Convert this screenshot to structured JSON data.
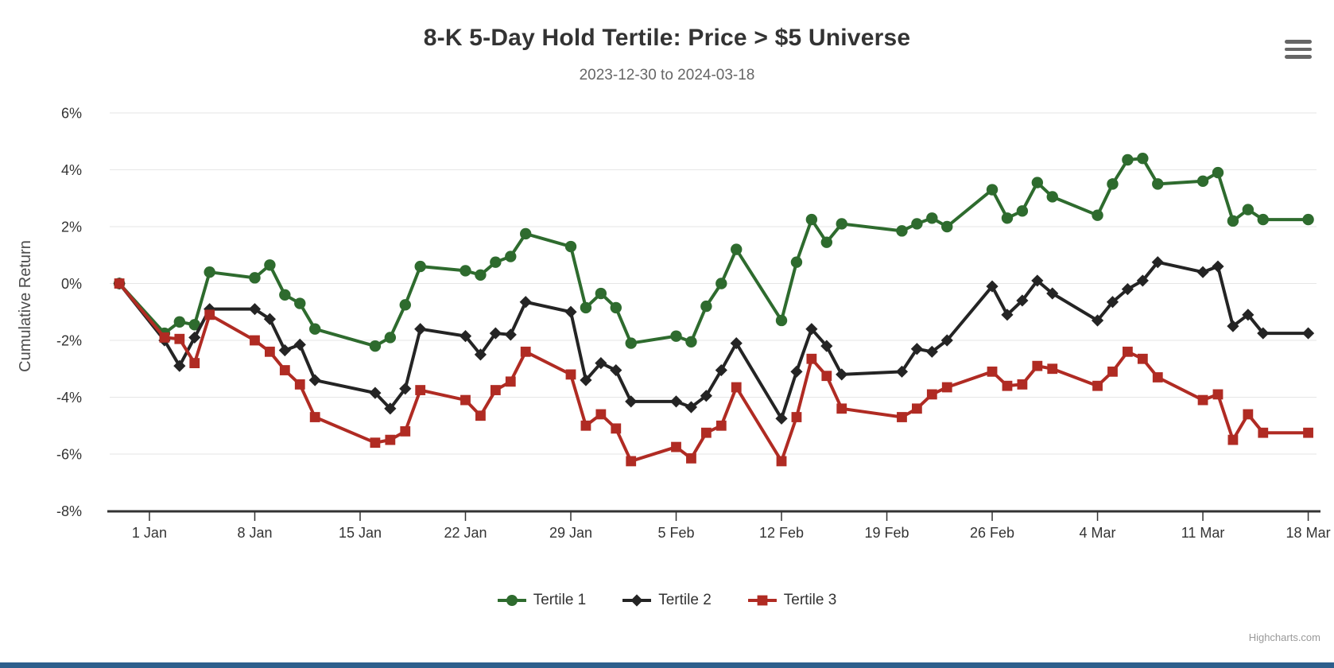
{
  "header": {
    "title": "8-K 5-Day Hold Tertile: Price > $5 Universe",
    "subtitle": "2023-12-30 to 2024-03-18"
  },
  "menu_button": {
    "icon": "hamburger-icon"
  },
  "credit": {
    "text": "Highcharts.com"
  },
  "colors": {
    "title_text": "#333333",
    "subtitle_text": "#666666",
    "axis_text": "#333333",
    "axis_line": "#333333",
    "axis_title_text": "#4D4D4D",
    "grid": "#E6E6E6",
    "menu_icon": "#666666",
    "credit_text": "#999999",
    "bottom_bar": "#2D5F8C",
    "tertile1": "#2E6B2E",
    "tertile2": "#242424",
    "tertile3": "#B02B23"
  },
  "chart_data": {
    "type": "line",
    "title": "8-K 5-Day Hold Tertile: Price > $5 Universe",
    "subtitle": "2023-12-30 to 2024-03-18",
    "xlabel": "",
    "ylabel": "Cumulative Return",
    "ylim": [
      -8,
      6
    ],
    "grid": true,
    "legend_position": "bottom",
    "x": [
      "2023-12-30",
      "2024-01-02",
      "2024-01-03",
      "2024-01-04",
      "2024-01-05",
      "2024-01-08",
      "2024-01-09",
      "2024-01-10",
      "2024-01-11",
      "2024-01-12",
      "2024-01-16",
      "2024-01-17",
      "2024-01-18",
      "2024-01-19",
      "2024-01-22",
      "2024-01-23",
      "2024-01-24",
      "2024-01-25",
      "2024-01-26",
      "2024-01-29",
      "2024-01-30",
      "2024-01-31",
      "2024-02-01",
      "2024-02-02",
      "2024-02-05",
      "2024-02-06",
      "2024-02-07",
      "2024-02-08",
      "2024-02-09",
      "2024-02-12",
      "2024-02-13",
      "2024-02-14",
      "2024-02-15",
      "2024-02-16",
      "2024-02-20",
      "2024-02-21",
      "2024-02-22",
      "2024-02-23",
      "2024-02-26",
      "2024-02-27",
      "2024-02-28",
      "2024-02-29",
      "2024-03-01",
      "2024-03-04",
      "2024-03-05",
      "2024-03-06",
      "2024-03-07",
      "2024-03-08",
      "2024-03-11",
      "2024-03-12",
      "2024-03-13",
      "2024-03-14",
      "2024-03-15",
      "2024-03-18"
    ],
    "series": [
      {
        "name": "Tertile 1",
        "marker": "circle",
        "color": "#2E6B2E",
        "values": [
          0.0,
          -1.75,
          -1.35,
          -1.45,
          0.4,
          0.2,
          0.65,
          -0.4,
          -0.7,
          -1.6,
          -2.2,
          -1.9,
          -0.75,
          0.6,
          0.45,
          0.3,
          0.75,
          0.95,
          1.75,
          1.3,
          -0.85,
          -0.35,
          -0.85,
          -2.1,
          -1.85,
          -2.05,
          -0.8,
          0.0,
          1.2,
          -1.3,
          0.75,
          2.25,
          1.45,
          2.1,
          1.85,
          2.1,
          2.3,
          2.0,
          3.3,
          2.3,
          2.55,
          3.55,
          3.05,
          2.4,
          3.5,
          4.35,
          4.4,
          3.5,
          3.6,
          3.9,
          2.2,
          2.6,
          2.25,
          2.25
        ]
      },
      {
        "name": "Tertile 2",
        "marker": "diamond",
        "color": "#242424",
        "values": [
          0.0,
          -2.0,
          -2.9,
          -1.9,
          -0.9,
          -0.9,
          -1.25,
          -2.35,
          -2.15,
          -3.4,
          -3.85,
          -4.4,
          -3.7,
          -1.6,
          -1.85,
          -2.5,
          -1.75,
          -1.8,
          -0.65,
          -1.0,
          -3.4,
          -2.8,
          -3.05,
          -4.15,
          -4.15,
          -4.35,
          -3.95,
          -3.05,
          -2.1,
          -4.75,
          -3.1,
          -1.6,
          -2.2,
          -3.2,
          -3.1,
          -2.3,
          -2.4,
          -2.0,
          -0.1,
          -1.1,
          -0.6,
          0.1,
          -0.35,
          -1.3,
          -0.65,
          -0.2,
          0.1,
          0.75,
          0.4,
          0.6,
          -1.5,
          -1.1,
          -1.75,
          -1.75
        ]
      },
      {
        "name": "Tertile 3",
        "marker": "square",
        "color": "#B02B23",
        "values": [
          0.0,
          -1.9,
          -1.95,
          -2.8,
          -1.1,
          -2.0,
          -2.4,
          -3.05,
          -3.55,
          -4.7,
          -5.6,
          -5.5,
          -5.2,
          -3.75,
          -4.1,
          -4.65,
          -3.75,
          -3.45,
          -2.4,
          -3.2,
          -5.0,
          -4.6,
          -5.1,
          -6.25,
          -5.75,
          -6.15,
          -5.25,
          -5.0,
          -3.65,
          -6.25,
          -4.7,
          -2.65,
          -3.25,
          -4.4,
          -4.7,
          -4.4,
          -3.9,
          -3.65,
          -3.1,
          -3.6,
          -3.55,
          -2.9,
          -3.0,
          -3.6,
          -3.1,
          -2.4,
          -2.65,
          -3.3,
          -4.1,
          -3.9,
          -5.5,
          -4.6,
          -5.25,
          -5.25
        ]
      }
    ],
    "x_ticks": [
      {
        "date": "2024-01-01",
        "label": "1 Jan"
      },
      {
        "date": "2024-01-08",
        "label": "8 Jan"
      },
      {
        "date": "2024-01-15",
        "label": "15 Jan"
      },
      {
        "date": "2024-01-22",
        "label": "22 Jan"
      },
      {
        "date": "2024-01-29",
        "label": "29 Jan"
      },
      {
        "date": "2024-02-05",
        "label": "5 Feb"
      },
      {
        "date": "2024-02-12",
        "label": "12 Feb"
      },
      {
        "date": "2024-02-19",
        "label": "19 Feb"
      },
      {
        "date": "2024-02-26",
        "label": "26 Feb"
      },
      {
        "date": "2024-03-04",
        "label": "4 Mar"
      },
      {
        "date": "2024-03-11",
        "label": "11 Mar"
      },
      {
        "date": "2024-03-18",
        "label": "18 Mar"
      }
    ],
    "y_ticks": [
      {
        "value": 6,
        "label": "6%"
      },
      {
        "value": 4,
        "label": "4%"
      },
      {
        "value": 2,
        "label": "2%"
      },
      {
        "value": 0,
        "label": "0%"
      },
      {
        "value": -2,
        "label": "-2%"
      },
      {
        "value": -4,
        "label": "-4%"
      },
      {
        "value": -6,
        "label": "-6%"
      },
      {
        "value": -8,
        "label": "-8%"
      }
    ]
  }
}
